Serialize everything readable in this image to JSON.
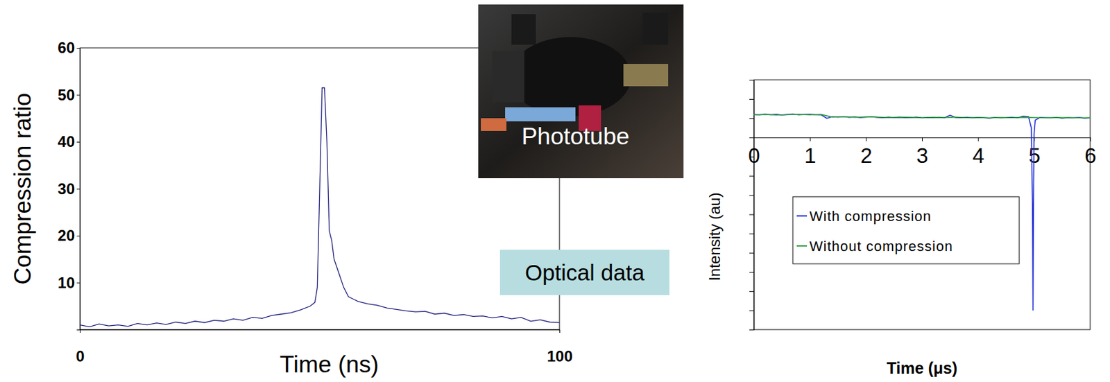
{
  "chart_data": [
    {
      "type": "line",
      "xlabel": "Time (ns)",
      "ylabel": "Compression ratio",
      "xlim": [
        0,
        100
      ],
      "xticks": [
        0,
        100
      ],
      "ylim": [
        0,
        60
      ],
      "yticks": [
        10,
        20,
        30,
        40,
        50,
        60
      ],
      "color": "#1a1a7a",
      "annotations": [
        "Phototube",
        "Optical data"
      ],
      "x": [
        0,
        2,
        4,
        6,
        8,
        10,
        12,
        14,
        16,
        18,
        20,
        22,
        24,
        26,
        28,
        30,
        32,
        34,
        36,
        38,
        40,
        42,
        44,
        46,
        48,
        49,
        49.5,
        50,
        50.5,
        51,
        51.5,
        52,
        52.5,
        53,
        54,
        55,
        56,
        57,
        58,
        60,
        62,
        64,
        66,
        68,
        70,
        72,
        74,
        76,
        78,
        80,
        82,
        84,
        86,
        88,
        90,
        92,
        94,
        96,
        98,
        100
      ],
      "values": [
        1.0,
        0.6,
        1.2,
        0.8,
        1.0,
        0.7,
        1.3,
        1.0,
        1.4,
        1.1,
        1.6,
        1.3,
        1.8,
        1.5,
        2.0,
        1.8,
        2.3,
        2.0,
        2.6,
        2.4,
        3.0,
        3.3,
        3.6,
        4.2,
        5.0,
        5.8,
        9,
        30,
        51.5,
        51.5,
        40,
        21,
        19,
        15,
        12,
        9,
        7,
        6.5,
        6,
        5.5,
        5.2,
        4.6,
        4.3,
        4.0,
        3.8,
        3.9,
        3.3,
        3.5,
        3.0,
        3.2,
        2.8,
        2.9,
        2.5,
        2.8,
        2.3,
        2.6,
        1.8,
        2.1,
        1.6,
        1.5
      ]
    },
    {
      "type": "line",
      "xlabel": "Time (μs)",
      "ylabel": "Intensity (au)",
      "xlim": [
        0,
        6
      ],
      "xticks": [
        0,
        1,
        2,
        3,
        4,
        5,
        6
      ],
      "ylim": [
        -1,
        0.3
      ],
      "yticks": [
        -1,
        -0.9,
        -0.8,
        -0.7,
        -0.6,
        -0.5,
        -0.4,
        -0.3,
        -0.2,
        -0.1,
        0,
        0.1,
        0.2,
        0.3
      ],
      "tick_labels": "x",
      "legend": "left",
      "series": [
        {
          "name": "With compression",
          "color": "#1f2fd6",
          "x": [
            0,
            0.1,
            0.2,
            0.3,
            0.4,
            0.5,
            0.6,
            0.7,
            0.8,
            0.9,
            1.0,
            1.1,
            1.2,
            1.3,
            1.4,
            1.5,
            1.6,
            1.7,
            1.8,
            1.9,
            2.0,
            2.1,
            2.2,
            2.3,
            2.4,
            2.5,
            2.6,
            2.7,
            2.8,
            2.9,
            3.0,
            3.1,
            3.2,
            3.3,
            3.4,
            3.5,
            3.6,
            3.7,
            3.8,
            3.9,
            4.0,
            4.1,
            4.2,
            4.3,
            4.4,
            4.5,
            4.6,
            4.7,
            4.8,
            4.9,
            4.95,
            4.97,
            4.98,
            4.99,
            5.0,
            5.02,
            5.1,
            5.2,
            5.3,
            5.4,
            5.5,
            5.6,
            5.7,
            5.8,
            5.9,
            6.0
          ],
          "values": [
            0.12,
            0.118,
            0.122,
            0.119,
            0.121,
            0.117,
            0.12,
            0.122,
            0.118,
            0.12,
            0.121,
            0.119,
            0.118,
            0.1,
            0.108,
            0.106,
            0.109,
            0.105,
            0.107,
            0.104,
            0.106,
            0.108,
            0.105,
            0.103,
            0.106,
            0.104,
            0.105,
            0.103,
            0.104,
            0.106,
            0.102,
            0.104,
            0.103,
            0.105,
            0.102,
            0.116,
            0.104,
            0.103,
            0.105,
            0.102,
            0.104,
            0.103,
            0.101,
            0.104,
            0.102,
            0.103,
            0.105,
            0.102,
            0.11,
            0.108,
            0.05,
            -0.35,
            -0.9,
            -0.25,
            0.02,
            0.09,
            0.104,
            0.103,
            0.102,
            0.104,
            0.101,
            0.103,
            0.102,
            0.104,
            0.101,
            0.102
          ]
        },
        {
          "name": "Without compression",
          "color": "#2e9a3a",
          "x": [
            0,
            0.2,
            0.4,
            0.6,
            0.8,
            1.0,
            1.2,
            1.4,
            1.6,
            1.8,
            2.0,
            2.2,
            2.4,
            2.6,
            2.8,
            3.0,
            3.2,
            3.4,
            3.6,
            3.8,
            4.0,
            4.2,
            4.4,
            4.6,
            4.8,
            5.0,
            5.2,
            5.4,
            5.6,
            5.8,
            6.0
          ],
          "values": [
            0.118,
            0.12,
            0.117,
            0.119,
            0.121,
            0.118,
            0.12,
            0.106,
            0.108,
            0.105,
            0.107,
            0.106,
            0.104,
            0.106,
            0.105,
            0.103,
            0.105,
            0.104,
            0.106,
            0.103,
            0.104,
            0.102,
            0.104,
            0.103,
            0.105,
            0.104,
            0.102,
            0.104,
            0.103,
            0.102,
            0.103
          ]
        }
      ]
    }
  ]
}
